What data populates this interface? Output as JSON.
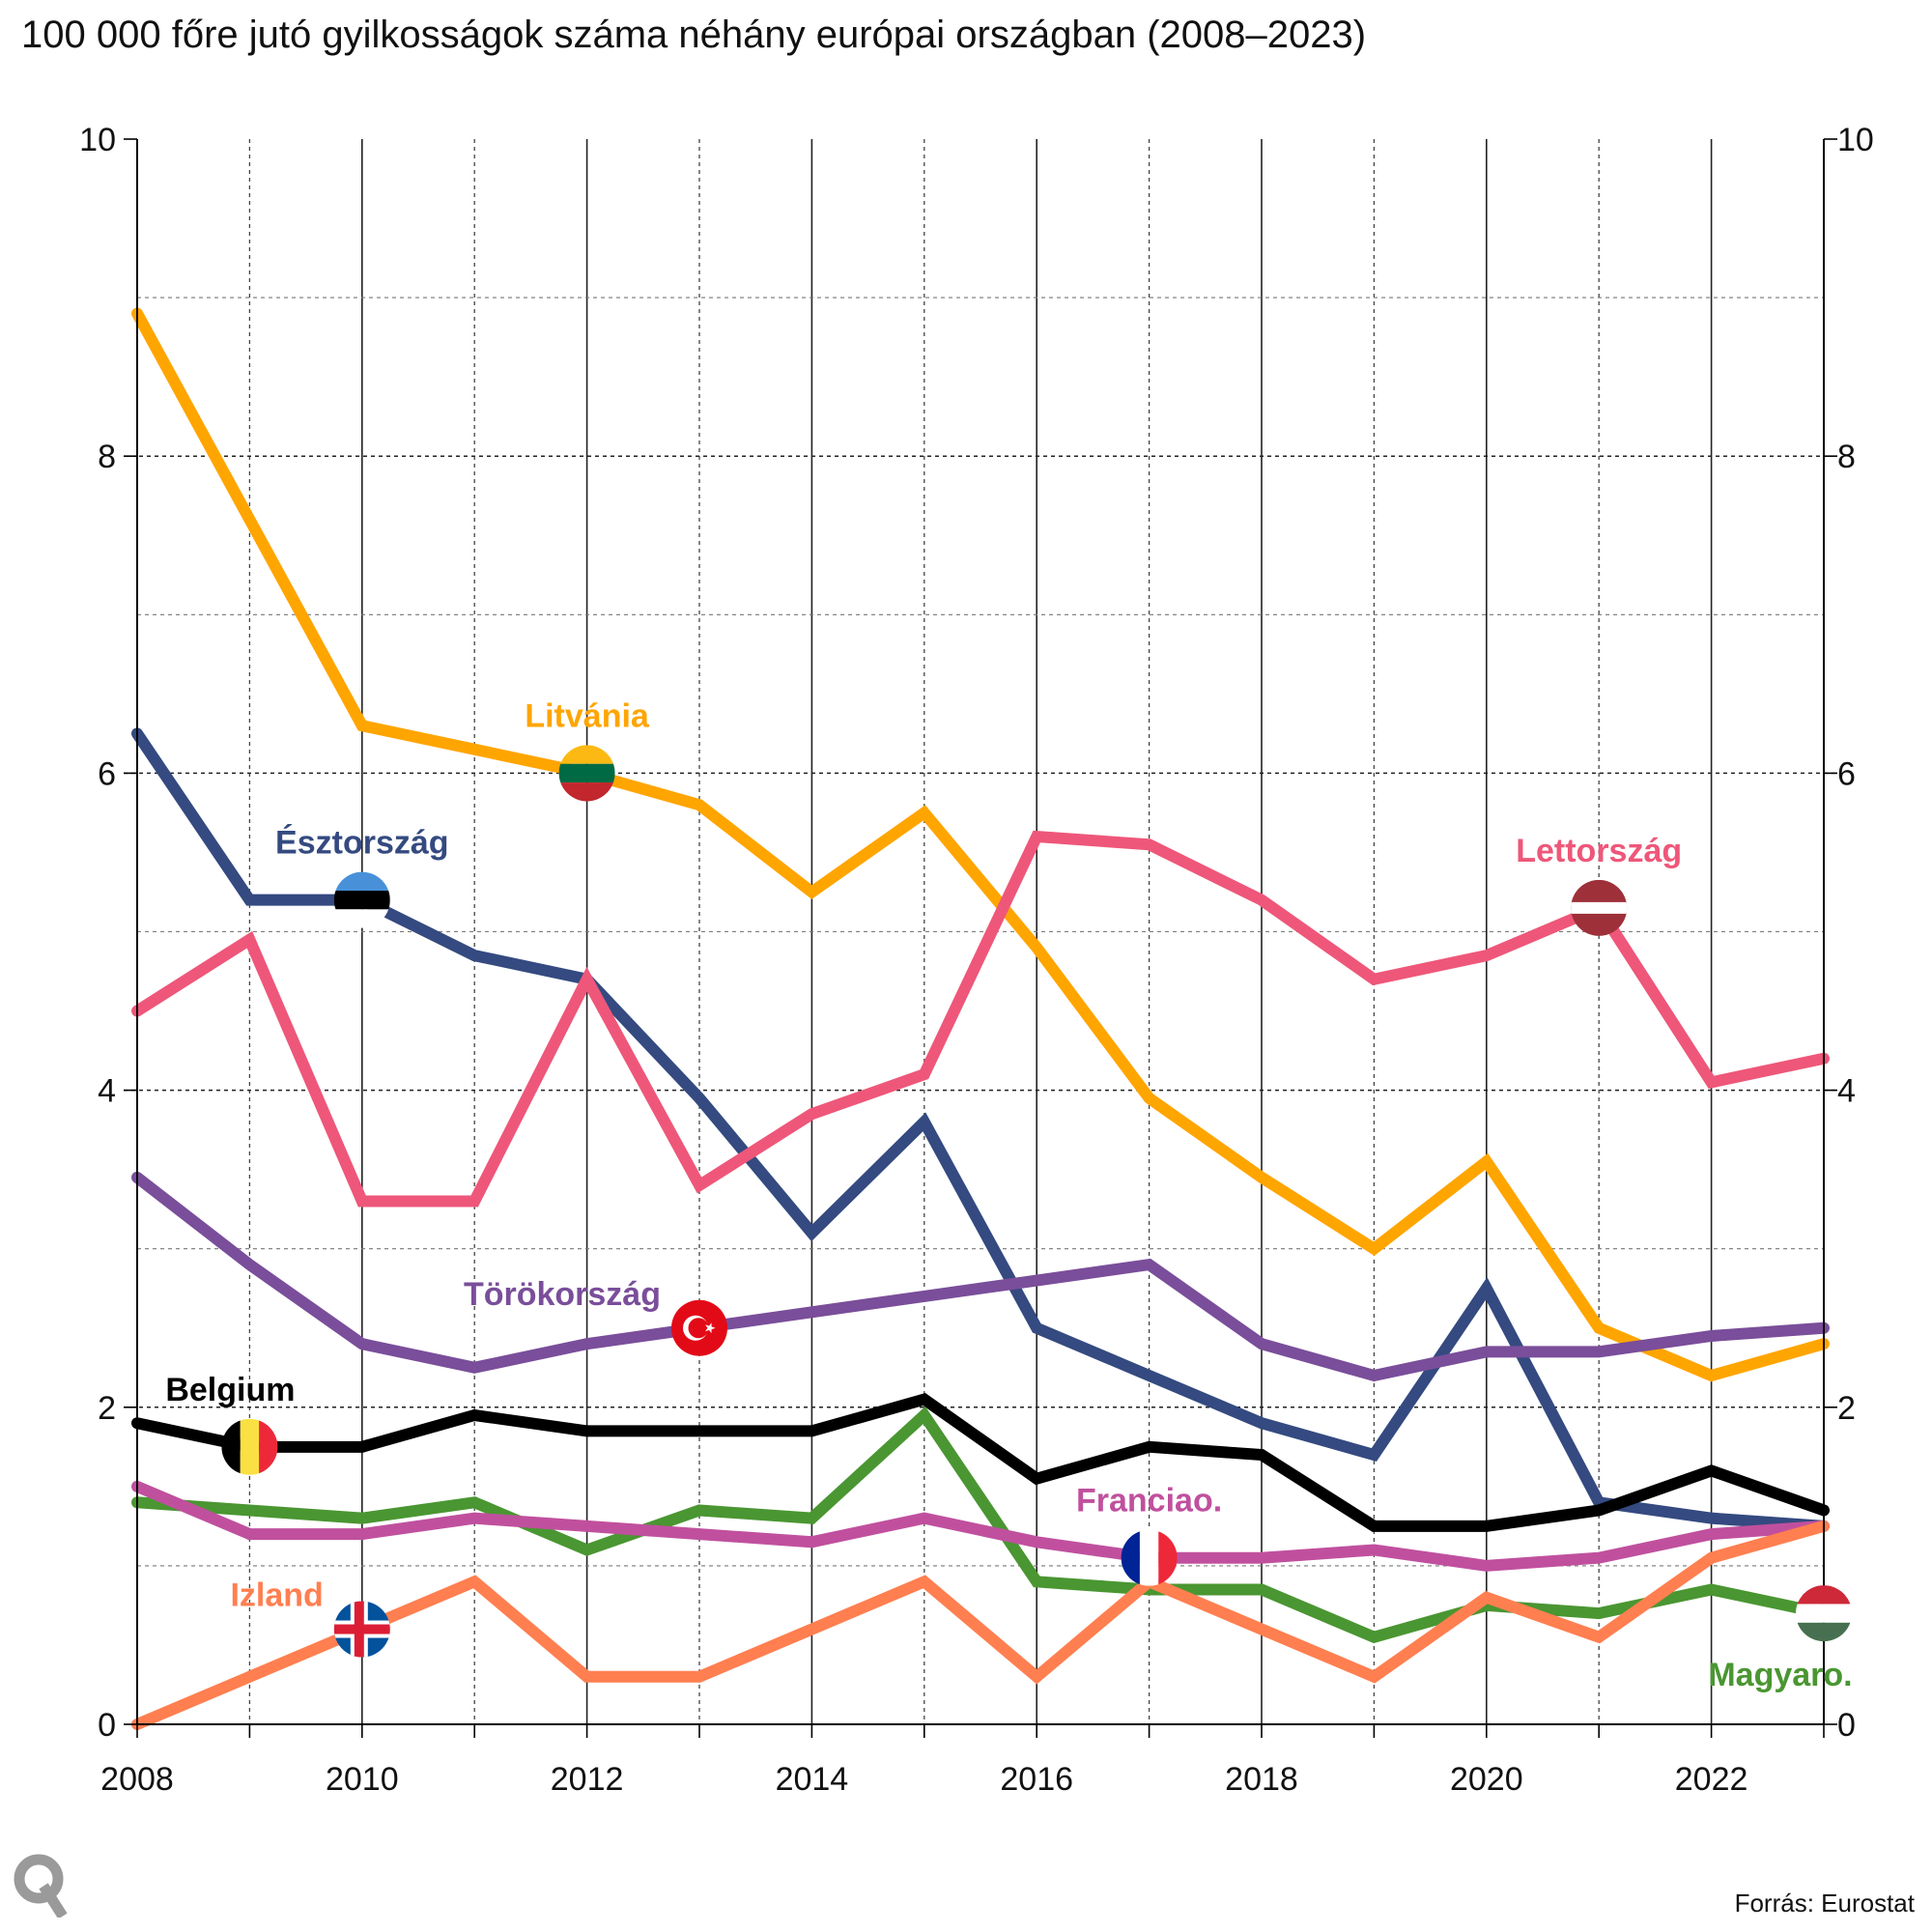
{
  "chart_data": {
    "type": "line",
    "title": "100 000 főre jutó gyilkosságok száma néhány európai országban (2008–2023)",
    "xlabel": "",
    "ylabel": "",
    "xlim": [
      2008,
      2023
    ],
    "ylim": [
      0,
      10
    ],
    "x_ticks": [
      2008,
      2010,
      2012,
      2014,
      2016,
      2018,
      2020,
      2022
    ],
    "y_ticks": [
      0,
      2,
      4,
      6,
      8,
      10
    ],
    "grid": true,
    "x": [
      2008,
      2009,
      2010,
      2011,
      2012,
      2013,
      2014,
      2015,
      2016,
      2017,
      2018,
      2019,
      2020,
      2021,
      2022,
      2023
    ],
    "series": [
      {
        "name": "Litvánia",
        "color": "#FFA500",
        "flag": "lithuania-flag-icon",
        "marker_year": 2012,
        "label_pos": "above",
        "values": [
          8.9,
          7.6,
          6.3,
          6.15,
          6.0,
          5.8,
          5.25,
          5.75,
          4.9,
          3.95,
          3.45,
          3.0,
          3.55,
          2.5,
          2.2,
          2.4
        ]
      },
      {
        "name": "Észtország",
        "color": "#344A80",
        "flag": "estonia-flag-icon",
        "marker_year": 2010,
        "label_pos": "above",
        "values": [
          6.25,
          5.2,
          5.2,
          4.85,
          4.7,
          3.95,
          3.1,
          3.8,
          2.5,
          2.2,
          1.9,
          1.7,
          2.75,
          1.4,
          1.3,
          1.25
        ]
      },
      {
        "name": "Lettország",
        "color": "#EE5779",
        "flag": "latvia-flag-icon",
        "marker_year": 2021,
        "label_pos": "above",
        "values": [
          4.5,
          4.95,
          3.3,
          3.3,
          4.7,
          3.4,
          3.85,
          4.1,
          5.6,
          5.55,
          5.2,
          4.7,
          4.85,
          5.15,
          4.05,
          4.2
        ]
      },
      {
        "name": "Törökország",
        "color": "#7A4E9A",
        "flag": "turkey-flag-icon",
        "marker_year": 2013,
        "label_pos": "left",
        "values": [
          3.45,
          2.9,
          2.4,
          2.25,
          2.4,
          2.5,
          2.6,
          2.7,
          2.8,
          2.9,
          2.4,
          2.2,
          2.35,
          2.35,
          2.45,
          2.5
        ]
      },
      {
        "name": "Belgium",
        "color": "#000000",
        "flag": "belgium-flag-icon",
        "marker_year": 2009,
        "label_pos": "above-left",
        "values": [
          1.9,
          1.75,
          1.75,
          1.95,
          1.85,
          1.85,
          1.85,
          2.05,
          1.55,
          1.75,
          1.7,
          1.25,
          1.25,
          1.35,
          1.6,
          1.35
        ]
      },
      {
        "name": "Magyaro.",
        "color": "#4A9632",
        "flag": "hungary-flag-icon",
        "marker_year": 2023,
        "label_pos": "below",
        "values": [
          1.4,
          1.35,
          1.3,
          1.4,
          1.1,
          1.35,
          1.3,
          1.95,
          0.9,
          0.85,
          0.85,
          0.55,
          0.75,
          0.7,
          0.85,
          0.7
        ]
      },
      {
        "name": "Franciao.",
        "color": "#C0509E",
        "flag": "france-flag-icon",
        "marker_year": 2017,
        "label_pos": "above",
        "values": [
          1.5,
          1.2,
          1.2,
          1.3,
          1.25,
          1.2,
          1.15,
          1.3,
          1.15,
          1.05,
          1.05,
          1.1,
          1.0,
          1.05,
          1.2,
          1.25
        ]
      },
      {
        "name": "Izland",
        "color": "#FF7F50",
        "flag": "iceland-flag-icon",
        "marker_year": 2010,
        "label_pos": "left",
        "values": [
          0.0,
          0.3,
          0.6,
          0.9,
          0.3,
          0.3,
          0.6,
          0.9,
          0.3,
          0.9,
          0.6,
          0.3,
          0.8,
          0.55,
          1.05,
          1.25
        ]
      }
    ]
  },
  "source": "Forrás: Eurostat",
  "logo_text": "Q"
}
